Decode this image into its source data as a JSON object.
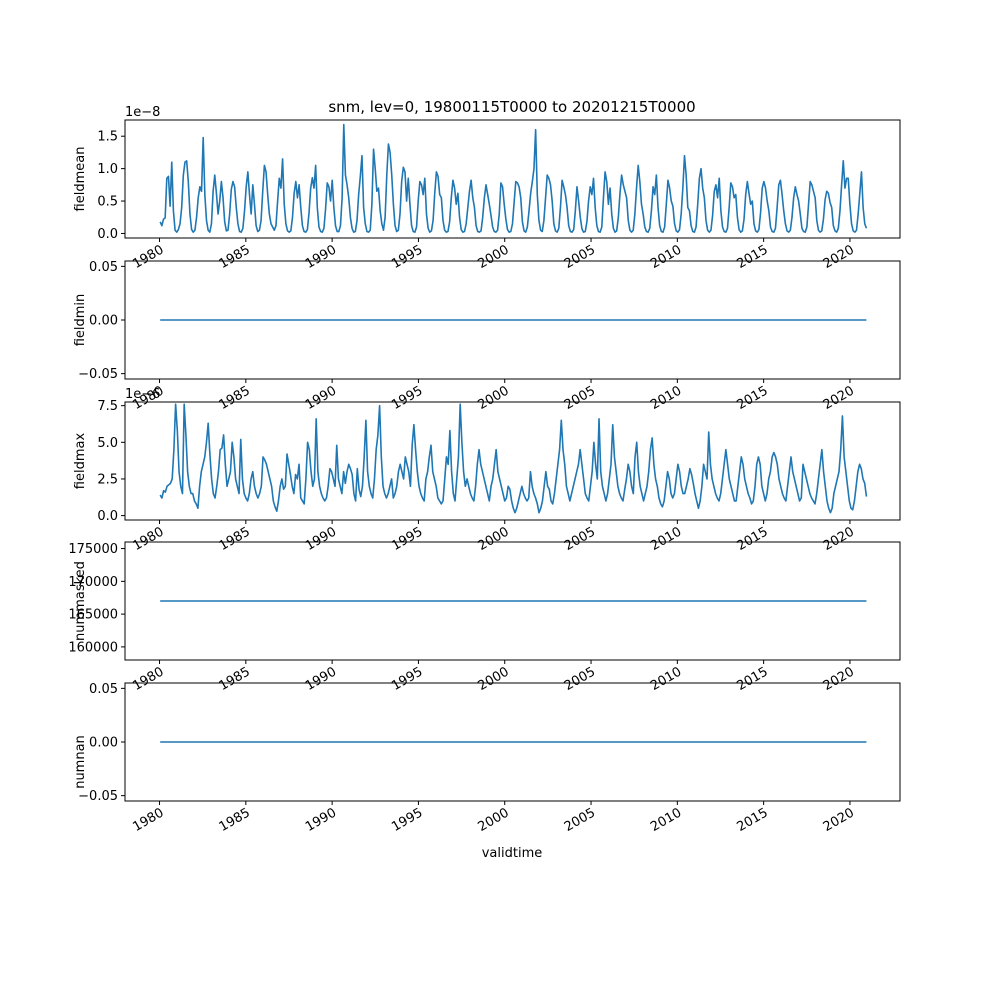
{
  "chart_data": {
    "type": "line",
    "title": "snm, lev=0, 19800115T0000 to 20201215T0000",
    "xlabel": "validtime",
    "x_range": [
      "1980-01-15",
      "2020-12-15"
    ],
    "x_ticks": [
      "1980",
      "1985",
      "1990",
      "1995",
      "2000",
      "2005",
      "2010",
      "2015",
      "2020"
    ],
    "xlim": [
      1978.0,
      2022.9
    ],
    "line_color": "#1f77b4",
    "grid": false,
    "legend": "none",
    "panels": [
      {
        "ylabel": "fieldmean",
        "offset_label": "1e−8",
        "ylim": [
          -0.07,
          1.75
        ],
        "y_ticks": [
          "0.0",
          "0.5",
          "1.0",
          "1.5"
        ],
        "y_tick_values": [
          0.0,
          0.5,
          1.0,
          1.5
        ],
        "values": [
          0.18,
          0.12,
          0.22,
          0.24,
          0.85,
          0.88,
          0.42,
          1.1,
          0.35,
          0.05,
          0.02,
          0.06,
          0.15,
          0.4,
          0.9,
          1.1,
          1.12,
          0.8,
          0.3,
          0.06,
          0.02,
          0.05,
          0.25,
          0.55,
          0.72,
          0.65,
          1.48,
          0.6,
          0.2,
          0.05,
          0.02,
          0.15,
          0.65,
          0.9,
          0.62,
          0.3,
          0.5,
          0.8,
          0.55,
          0.18,
          0.04,
          0.05,
          0.3,
          0.68,
          0.8,
          0.72,
          0.4,
          0.15,
          0.03,
          0.02,
          0.08,
          0.35,
          0.72,
          0.95,
          0.6,
          0.3,
          0.75,
          0.45,
          0.12,
          0.03,
          0.05,
          0.2,
          0.65,
          1.05,
          0.95,
          0.6,
          0.3,
          0.15,
          0.1,
          0.05,
          0.12,
          0.5,
          0.85,
          0.7,
          1.15,
          0.45,
          0.15,
          0.04,
          0.02,
          0.04,
          0.25,
          0.62,
          0.8,
          0.55,
          0.75,
          0.4,
          0.12,
          0.03,
          0.02,
          0.06,
          0.32,
          0.7,
          0.86,
          0.7,
          1.05,
          0.4,
          0.1,
          0.03,
          0.02,
          0.08,
          0.38,
          0.78,
          0.72,
          0.5,
          0.82,
          0.4,
          0.12,
          0.03,
          0.03,
          0.12,
          0.55,
          1.68,
          0.9,
          0.75,
          0.55,
          0.25,
          0.08,
          0.02,
          0.03,
          0.2,
          0.6,
          0.88,
          1.2,
          0.4,
          0.15,
          0.03,
          0.02,
          0.05,
          0.45,
          1.3,
          1.0,
          0.65,
          0.7,
          0.35,
          0.15,
          0.05,
          0.25,
          0.9,
          1.38,
          1.25,
          0.9,
          0.45,
          0.12,
          0.03,
          0.05,
          0.3,
          0.8,
          1.02,
          0.95,
          0.5,
          0.85,
          0.45,
          0.12,
          0.03,
          0.02,
          0.1,
          0.5,
          0.8,
          0.75,
          0.6,
          0.85,
          0.3,
          0.08,
          0.02,
          0.04,
          0.2,
          0.62,
          0.95,
          0.88,
          0.6,
          0.55,
          0.2,
          0.05,
          0.02,
          0.03,
          0.18,
          0.55,
          0.82,
          0.7,
          0.45,
          0.62,
          0.25,
          0.06,
          0.02,
          0.03,
          0.15,
          0.4,
          0.65,
          0.82,
          0.55,
          0.4,
          0.12,
          0.03,
          0.02,
          0.04,
          0.25,
          0.55,
          0.75,
          0.6,
          0.45,
          0.28,
          0.1,
          0.03,
          0.02,
          0.05,
          0.3,
          0.78,
          0.72,
          0.45,
          0.22,
          0.06,
          0.02,
          0.03,
          0.15,
          0.48,
          0.8,
          0.78,
          0.72,
          0.55,
          0.18,
          0.04,
          0.02,
          0.1,
          0.35,
          0.62,
          0.8,
          1.0,
          1.6,
          0.6,
          0.2,
          0.05,
          0.03,
          0.2,
          0.55,
          0.9,
          0.85,
          0.75,
          0.5,
          0.15,
          0.04,
          0.02,
          0.08,
          0.4,
          0.82,
          0.72,
          0.6,
          0.4,
          0.12,
          0.03,
          0.02,
          0.06,
          0.35,
          0.72,
          0.5,
          0.25,
          0.07,
          0.02,
          0.03,
          0.18,
          0.5,
          0.72,
          0.6,
          0.85,
          0.4,
          0.12,
          0.03,
          0.02,
          0.1,
          0.55,
          0.95,
          0.8,
          0.45,
          0.7,
          0.3,
          0.08,
          0.02,
          0.04,
          0.25,
          0.62,
          0.9,
          0.75,
          0.65,
          0.55,
          0.2,
          0.05,
          0.02,
          0.05,
          0.3,
          0.7,
          1.05,
          0.8,
          0.45,
          0.3,
          0.1,
          0.03,
          0.02,
          0.08,
          0.35,
          0.72,
          0.6,
          0.9,
          0.4,
          0.12,
          0.03,
          0.02,
          0.1,
          0.45,
          0.82,
          0.7,
          0.5,
          0.42,
          0.15,
          0.04,
          0.02,
          0.06,
          0.3,
          0.7,
          1.2,
          0.9,
          0.4,
          0.35,
          0.12,
          0.03,
          0.02,
          0.1,
          0.45,
          0.85,
          1.0,
          0.7,
          0.55,
          0.2,
          0.05,
          0.02,
          0.05,
          0.28,
          0.65,
          0.75,
          0.55,
          0.85,
          0.35,
          0.1,
          0.03,
          0.02,
          0.08,
          0.4,
          0.78,
          0.72,
          0.55,
          0.6,
          0.25,
          0.06,
          0.02,
          0.04,
          0.22,
          0.6,
          0.8,
          0.62,
          0.45,
          0.5,
          0.15,
          0.04,
          0.02,
          0.06,
          0.32,
          0.7,
          0.8,
          0.7,
          0.5,
          0.35,
          0.1,
          0.03,
          0.02,
          0.08,
          0.4,
          0.75,
          0.82,
          0.6,
          0.35,
          0.15,
          0.04,
          0.02,
          0.05,
          0.25,
          0.55,
          0.72,
          0.6,
          0.5,
          0.3,
          0.08,
          0.03,
          0.02,
          0.1,
          0.45,
          0.8,
          0.75,
          0.65,
          0.55,
          0.2,
          0.05,
          0.02,
          0.04,
          0.22,
          0.52,
          0.65,
          0.62,
          0.48,
          0.4,
          0.12,
          0.04,
          0.02,
          0.08,
          0.35,
          0.75,
          1.12,
          0.7,
          0.85,
          0.85,
          0.45,
          0.15,
          0.04,
          0.02,
          0.05,
          0.3,
          0.62,
          0.95,
          0.4,
          0.15,
          0.08
        ]
      },
      {
        "ylabel": "fieldmin",
        "ylim": [
          -0.055,
          0.055
        ],
        "y_ticks": [
          "−0.05",
          "0.00",
          "0.05"
        ],
        "y_tick_values": [
          -0.05,
          0.0,
          0.05
        ],
        "constant_value": 0.0
      },
      {
        "ylabel": "fieldmax",
        "offset_label": "1e−6",
        "ylim": [
          -0.3,
          7.75
        ],
        "y_ticks": [
          "0.0",
          "2.5",
          "5.0",
          "7.5"
        ],
        "y_tick_values": [
          0.0,
          2.5,
          5.0,
          7.5
        ],
        "values": [
          1.4,
          1.2,
          1.7,
          1.6,
          2.0,
          2.1,
          2.2,
          2.5,
          4.5,
          7.6,
          5.8,
          3.0,
          2.0,
          1.5,
          7.6,
          5.5,
          3.0,
          2.0,
          1.5,
          1.5,
          1.0,
          0.8,
          0.5,
          2.0,
          3.0,
          3.5,
          4.0,
          5.0,
          6.3,
          4.2,
          2.5,
          1.5,
          1.2,
          2.0,
          3.0,
          4.5,
          4.6,
          5.5,
          3.5,
          2.0,
          2.5,
          3.0,
          5.0,
          4.0,
          2.5,
          2.0,
          1.5,
          5.2,
          2.5,
          1.5,
          1.2,
          1.0,
          1.5,
          2.5,
          3.0,
          2.0,
          1.5,
          1.2,
          1.5,
          2.0,
          4.0,
          3.8,
          3.5,
          3.0,
          2.5,
          2.0,
          1.0,
          0.6,
          0.3,
          1.0,
          2.0,
          2.5,
          1.8,
          2.0,
          4.2,
          3.5,
          2.8,
          2.0,
          1.5,
          2.8,
          2.5,
          3.5,
          1.2,
          1.0,
          0.8,
          2.5,
          5.0,
          4.5,
          3.0,
          2.0,
          2.5,
          6.6,
          3.0,
          2.0,
          1.5,
          1.2,
          1.0,
          1.2,
          2.0,
          3.2,
          3.0,
          2.5,
          2.0,
          4.8,
          2.5,
          2.0,
          1.5,
          3.0,
          2.2,
          3.0,
          3.5,
          3.2,
          2.8,
          1.5,
          1.0,
          3.2,
          1.8,
          1.3,
          2.0,
          4.0,
          6.5,
          3.0,
          2.0,
          1.5,
          1.2,
          2.5,
          4.5,
          5.5,
          7.5,
          4.0,
          2.0,
          1.5,
          1.2,
          1.5,
          2.0,
          2.5,
          1.2,
          1.5,
          2.0,
          3.0,
          3.5,
          3.0,
          2.5,
          4.0,
          3.5,
          3.0,
          2.0,
          4.8,
          6.2,
          4.5,
          3.0,
          2.0,
          1.5,
          1.2,
          1.0,
          2.5,
          3.0,
          4.0,
          4.8,
          3.0,
          2.5,
          2.0,
          1.2,
          1.0,
          0.8,
          1.0,
          2.5,
          4.0,
          3.5,
          5.8,
          3.0,
          1.5,
          1.0,
          2.5,
          4.0,
          7.6,
          5.0,
          3.0,
          2.0,
          2.5,
          2.0,
          1.5,
          1.2,
          1.0,
          2.0,
          3.5,
          4.5,
          3.5,
          3.0,
          2.5,
          2.0,
          1.5,
          1.0,
          2.0,
          2.5,
          3.5,
          4.5,
          3.0,
          2.5,
          2.0,
          1.5,
          1.0,
          1.2,
          2.0,
          1.8,
          1.0,
          0.5,
          0.2,
          0.5,
          1.0,
          1.5,
          2.0,
          1.5,
          1.2,
          1.0,
          1.2,
          3.0,
          2.0,
          1.5,
          1.2,
          0.8,
          0.2,
          0.5,
          1.0,
          2.0,
          3.0,
          2.0,
          1.8,
          1.0,
          0.8,
          1.5,
          2.5,
          3.5,
          4.5,
          6.5,
          4.5,
          3.5,
          2.0,
          1.5,
          1.0,
          1.5,
          2.0,
          2.5,
          3.0,
          3.5,
          4.5,
          3.5,
          2.5,
          1.5,
          1.2,
          1.0,
          2.0,
          3.0,
          5.0,
          3.5,
          2.5,
          6.6,
          3.0,
          2.0,
          1.5,
          1.0,
          1.5,
          2.5,
          3.5,
          6.2,
          4.0,
          3.0,
          2.0,
          1.5,
          1.2,
          1.0,
          1.8,
          2.5,
          3.5,
          3.0,
          2.0,
          1.5,
          4.0,
          5.0,
          3.0,
          2.0,
          1.5,
          1.0,
          1.5,
          2.0,
          3.0,
          4.5,
          5.3,
          3.5,
          2.5,
          2.0,
          1.2,
          0.8,
          0.6,
          1.0,
          2.0,
          3.0,
          2.5,
          1.5,
          1.2,
          1.5,
          2.5,
          3.5,
          3.0,
          2.0,
          1.5,
          1.5,
          2.0,
          2.5,
          3.2,
          2.8,
          2.2,
          1.5,
          1.0,
          0.5,
          1.0,
          2.0,
          3.5,
          3.0,
          2.5,
          5.7,
          3.5,
          2.5,
          2.0,
          1.5,
          1.2,
          1.0,
          1.5,
          2.5,
          3.5,
          4.5,
          3.5,
          2.5,
          2.0,
          1.5,
          1.0,
          1.0,
          2.0,
          3.0,
          4.0,
          3.5,
          2.5,
          2.0,
          1.5,
          1.2,
          0.8,
          1.0,
          2.0,
          3.5,
          4.0,
          3.5,
          2.0,
          1.5,
          1.0,
          1.5,
          2.5,
          3.0,
          4.0,
          4.3,
          4.0,
          3.5,
          2.5,
          2.0,
          1.5,
          1.2,
          1.0,
          2.0,
          3.0,
          4.0,
          3.0,
          2.5,
          2.0,
          1.5,
          1.0,
          1.2,
          3.5,
          3.0,
          2.5,
          2.0,
          1.5,
          1.2,
          1.0,
          0.8,
          1.5,
          2.5,
          3.5,
          4.5,
          3.0,
          2.0,
          1.0,
          0.5,
          0.2,
          0.5,
          1.5,
          2.0,
          2.5,
          3.0,
          4.5,
          6.8,
          4.0,
          3.0,
          2.0,
          1.0,
          0.5,
          0.4,
          1.0,
          2.0,
          3.0,
          3.5,
          3.2,
          2.5,
          2.2,
          1.3
        ]
      },
      {
        "ylabel": "nummasked",
        "ylim": [
          158000,
          176000
        ],
        "y_ticks": [
          "160000",
          "165000",
          "170000",
          "175000"
        ],
        "y_tick_values": [
          160000,
          165000,
          170000,
          175000
        ],
        "constant_value": 167000
      },
      {
        "ylabel": "numnan",
        "ylim": [
          -0.055,
          0.055
        ],
        "y_ticks": [
          "−0.05",
          "0.00",
          "0.05"
        ],
        "y_tick_values": [
          -0.05,
          0.0,
          0.05
        ],
        "constant_value": 0.0
      }
    ]
  }
}
